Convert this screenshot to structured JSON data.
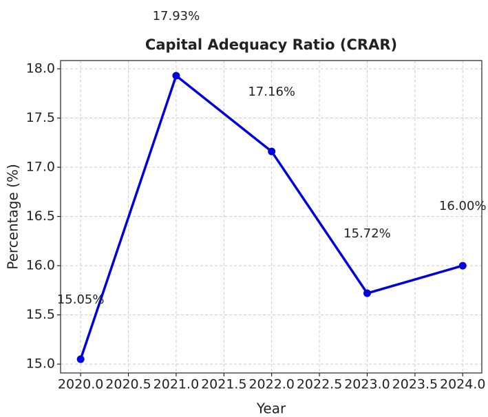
{
  "chart_data": {
    "type": "line",
    "title": "Capital Adequacy Ratio (CRAR)",
    "xlabel": "Year",
    "ylabel": "Percentage (%)",
    "x": [
      2020,
      2021,
      2022,
      2023,
      2024
    ],
    "series": [
      {
        "name": "CRAR",
        "color": "#0000dd",
        "values": [
          15.05,
          17.93,
          17.16,
          15.72,
          16.0
        ],
        "value_labels": [
          "15.05%",
          "17.93%",
          "17.16%",
          "15.72%",
          "16.00%"
        ]
      }
    ],
    "xlim": [
      2019.79,
      2024.2
    ],
    "xticks": [
      {
        "value": 2020,
        "label": "2020.0"
      },
      2020.5,
      {
        "value": 2021,
        "label": "2021.0"
      },
      2021.5,
      {
        "value": 2022,
        "label": "2022.0"
      },
      2022.5,
      {
        "value": 2023,
        "label": "2023.0"
      },
      2023.5,
      {
        "value": 2024,
        "label": "2024.0"
      }
    ],
    "ylim": [
      14.91,
      18.084
    ],
    "yticks": [
      {
        "value": 15,
        "label": "15.0"
      },
      15.5,
      {
        "value": 16,
        "label": "16.0"
      },
      16.5,
      {
        "value": 17,
        "label": "17.0"
      },
      17.5,
      {
        "value": 18,
        "label": "18.0"
      }
    ],
    "grid": true
  }
}
